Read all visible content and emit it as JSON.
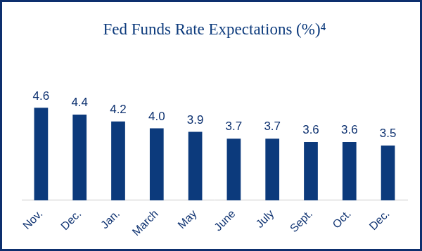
{
  "chart_data": {
    "type": "bar",
    "title": "Fed Funds Rate Expectations (%)⁴",
    "categories": [
      "Nov.",
      "Dec.",
      "Jan.",
      "March",
      "May",
      "June",
      "July",
      "Sept.",
      "Oct.",
      "Dec."
    ],
    "values": [
      4.6,
      4.4,
      4.2,
      4.0,
      3.9,
      3.7,
      3.7,
      3.6,
      3.6,
      3.5
    ],
    "value_labels": [
      "4.6",
      "4.4",
      "4.2",
      "4.0",
      "3.9",
      "3.7",
      "3.7",
      "3.6",
      "3.6",
      "3.5"
    ],
    "color": "#0c3a7c",
    "ylim": [
      1.9,
      5.6
    ],
    "grid": false,
    "data_labels": true,
    "tick_labels": "x"
  }
}
